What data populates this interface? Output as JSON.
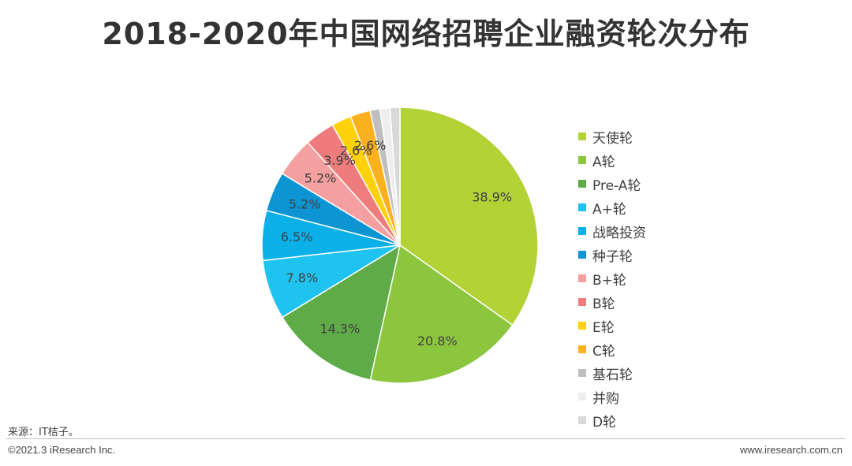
{
  "title": "2018-2020年中国网络招聘企业融资轮次分布",
  "footer": {
    "source": "来源：IT桔子。",
    "copyright": "©2021.3 iResearch Inc.",
    "website": "www.iresearch.com.cn"
  },
  "chart_data": {
    "type": "pie",
    "legend_position": "right",
    "slices": [
      {
        "name": "天使轮",
        "value": 38.9,
        "label": "38.9%",
        "color": "#b2d235"
      },
      {
        "name": "A轮",
        "value": 20.8,
        "label": "20.8%",
        "color": "#8cc63f"
      },
      {
        "name": "Pre-A轮",
        "value": 14.3,
        "label": "14.3%",
        "color": "#5eab47"
      },
      {
        "name": "A+轮",
        "value": 7.8,
        "label": "7.8%",
        "color": "#1fc3ef"
      },
      {
        "name": "战略投资",
        "value": 6.5,
        "label": "6.5%",
        "color": "#0bb0e8"
      },
      {
        "name": "种子轮",
        "value": 5.2,
        "label": "5.2%",
        "color": "#0d94d2"
      },
      {
        "name": "B+轮",
        "value": 5.2,
        "label": "5.2%",
        "color": "#f4a0a0"
      },
      {
        "name": "B轮",
        "value": 3.9,
        "label": "3.9%",
        "color": "#ee7c7c"
      },
      {
        "name": "E轮",
        "value": 2.6,
        "label": "2.6%",
        "color": "#ffd10a"
      },
      {
        "name": "C轮",
        "value": 2.6,
        "label": "2.6%",
        "color": "#fbb01d"
      },
      {
        "name": "基石轮",
        "value": 1.3,
        "label": "",
        "color": "#bfbfbf"
      },
      {
        "name": "并购",
        "value": 1.3,
        "label": "",
        "color": "#eeeeee"
      },
      {
        "name": "D轮",
        "value": 1.3,
        "label": "",
        "color": "#d9d9d9"
      }
    ]
  }
}
